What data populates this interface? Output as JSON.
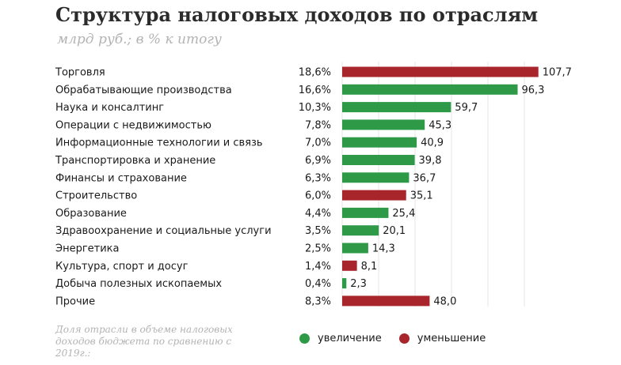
{
  "title": "Структура налоговых доходов по отраслям",
  "subtitle": "млрд руб.; в % к итогу",
  "footnote": "Доля отрасли в объеме налоговых доходов бюджета по сравнению с 2019г.:",
  "colors": {
    "increase": "#2e9a48",
    "decrease": "#a8262b",
    "grid": "#e4e4e4"
  },
  "legend": {
    "increase_label": "увеличение",
    "decrease_label": "уменьшение"
  },
  "chart_data": {
    "type": "bar",
    "orientation": "horizontal",
    "title": "Структура налоговых доходов по отраслям",
    "subtitle": "млрд руб.; в % к итогу",
    "xlim": [
      0,
      110
    ],
    "grid": true,
    "legend_position": "bottom",
    "categories": [
      "Торговля",
      "Обрабатывающие производства",
      "Наука и консалтинг",
      "Операции с недвижимостью",
      "Информационные технологии и связь",
      "Транспортировка и хранение",
      "Финансы и страхование",
      "Строительство",
      "Образование",
      "Здравоохранение и социальные услуги",
      "Энергетика",
      "Культура, спорт и досуг",
      "Добыча полезных ископаемых",
      "Прочие"
    ],
    "shares": [
      "18,6%",
      "16,6%",
      "10,3%",
      "7,8%",
      "7,0%",
      "6,9%",
      "6,3%",
      "6,0%",
      "4,4%",
      "3,5%",
      "2,5%",
      "1,4%",
      "0,4%",
      "8,3%"
    ],
    "values": [
      107.7,
      96.3,
      59.7,
      45.3,
      40.9,
      39.8,
      36.7,
      35.1,
      25.4,
      20.1,
      14.3,
      8.1,
      2.3,
      48.0
    ],
    "value_labels": [
      "107,7",
      "96,3",
      "59,7",
      "45,3",
      "40,9",
      "39,8",
      "36,7",
      "35,1",
      "25,4",
      "20,1",
      "14,3",
      "8,1",
      "2,3",
      "48,0"
    ],
    "change": [
      "decrease",
      "increase",
      "increase",
      "increase",
      "increase",
      "increase",
      "increase",
      "decrease",
      "increase",
      "increase",
      "increase",
      "decrease",
      "increase",
      "decrease"
    ]
  }
}
